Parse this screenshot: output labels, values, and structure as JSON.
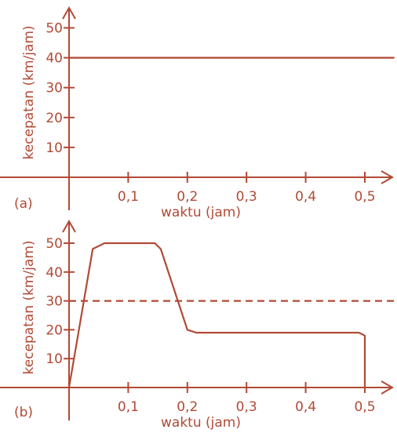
{
  "chart_data": [
    {
      "type": "line",
      "panel_label": "(a)",
      "xlabel": "waktu (jam)",
      "ylabel": "kecepatan (km/jam)",
      "xlim": [
        0,
        0.55
      ],
      "ylim": [
        0,
        55
      ],
      "x_ticks": [
        0.1,
        0.2,
        0.3,
        0.4,
        0.5
      ],
      "x_tick_labels": [
        "0,1",
        "0,2",
        "0,3",
        "0,4",
        "0,5"
      ],
      "y_ticks": [
        10,
        20,
        30,
        40,
        50
      ],
      "y_tick_labels": [
        "10",
        "20",
        "30",
        "40",
        "50"
      ],
      "grid": false,
      "series": [
        {
          "style": "solid",
          "x": [
            0,
            0.55
          ],
          "y": [
            40,
            40
          ]
        }
      ]
    },
    {
      "type": "line",
      "panel_label": "(b)",
      "xlabel": "waktu (jam)",
      "ylabel": "kecepatan (km/jam)",
      "xlim": [
        0,
        0.55
      ],
      "ylim": [
        0,
        55
      ],
      "x_ticks": [
        0.1,
        0.2,
        0.3,
        0.4,
        0.5
      ],
      "x_tick_labels": [
        "0,1",
        "0,2",
        "0,3",
        "0,4",
        "0,5"
      ],
      "y_ticks": [
        10,
        20,
        30,
        40,
        50
      ],
      "y_tick_labels": [
        "10",
        "20",
        "30",
        "40",
        "50"
      ],
      "grid": false,
      "series": [
        {
          "style": "solid",
          "x": [
            0,
            0.04,
            0.06,
            0.145,
            0.155,
            0.2,
            0.215,
            0.49,
            0.5,
            0.5
          ],
          "y": [
            0,
            48,
            50,
            50,
            48,
            20,
            19,
            19,
            18,
            0
          ]
        },
        {
          "style": "dashed",
          "x": [
            0,
            0.55
          ],
          "y": [
            30,
            30
          ]
        }
      ]
    }
  ],
  "colors": {
    "ink": "#b14a36"
  }
}
